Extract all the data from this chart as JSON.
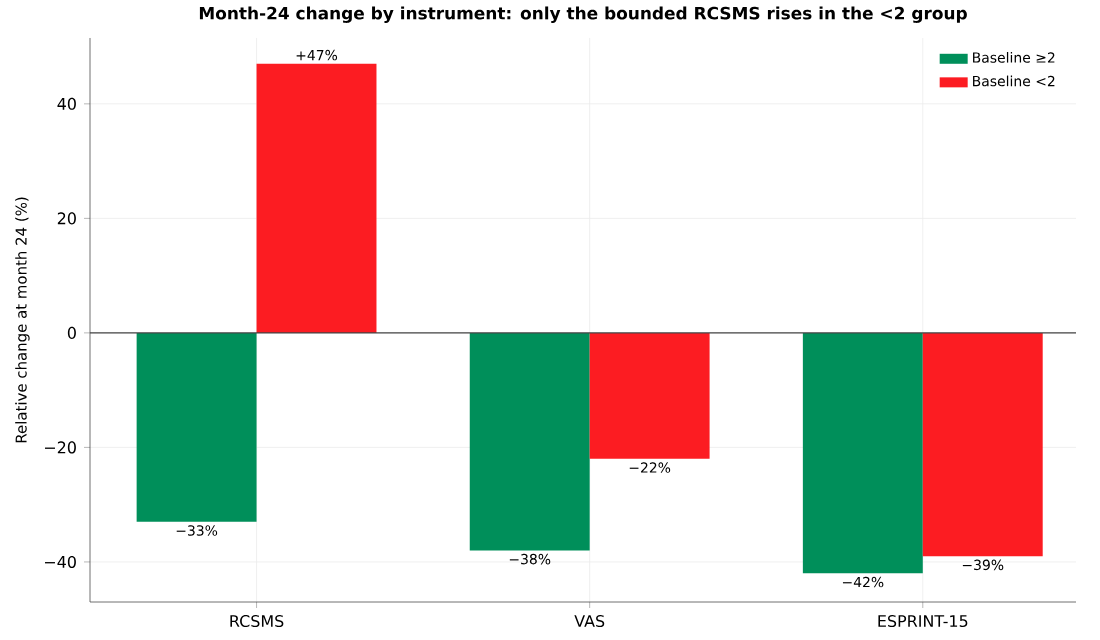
{
  "chart_data": {
    "type": "bar",
    "title": "Month-24 change by instrument: only the bounded RCSMS rises in the <2 group",
    "ylabel": "Relative change at month 24 (%)",
    "categories": [
      "RCSMS",
      "VAS",
      "ESPRINT-15"
    ],
    "series": [
      {
        "name": "Baseline ≥2",
        "color": "#008f5a",
        "values": [
          -33,
          -38,
          -42
        ],
        "value_labels": [
          "−33%",
          "−38%",
          "−42%"
        ]
      },
      {
        "name": "Baseline <2",
        "color": "#fc1c22",
        "values": [
          47,
          -22,
          -39
        ],
        "value_labels": [
          "+47%",
          "−22%",
          "−39%"
        ]
      }
    ],
    "ylim": [
      -47,
      51.5
    ],
    "yticks": [
      {
        "value": -40,
        "label": "−40"
      },
      {
        "value": -20,
        "label": "−20"
      },
      0,
      20,
      40
    ],
    "ref_lines": [
      {
        "axis": "y",
        "value": 0,
        "color": "#444444"
      }
    ],
    "grid": true,
    "legend": "top right"
  }
}
